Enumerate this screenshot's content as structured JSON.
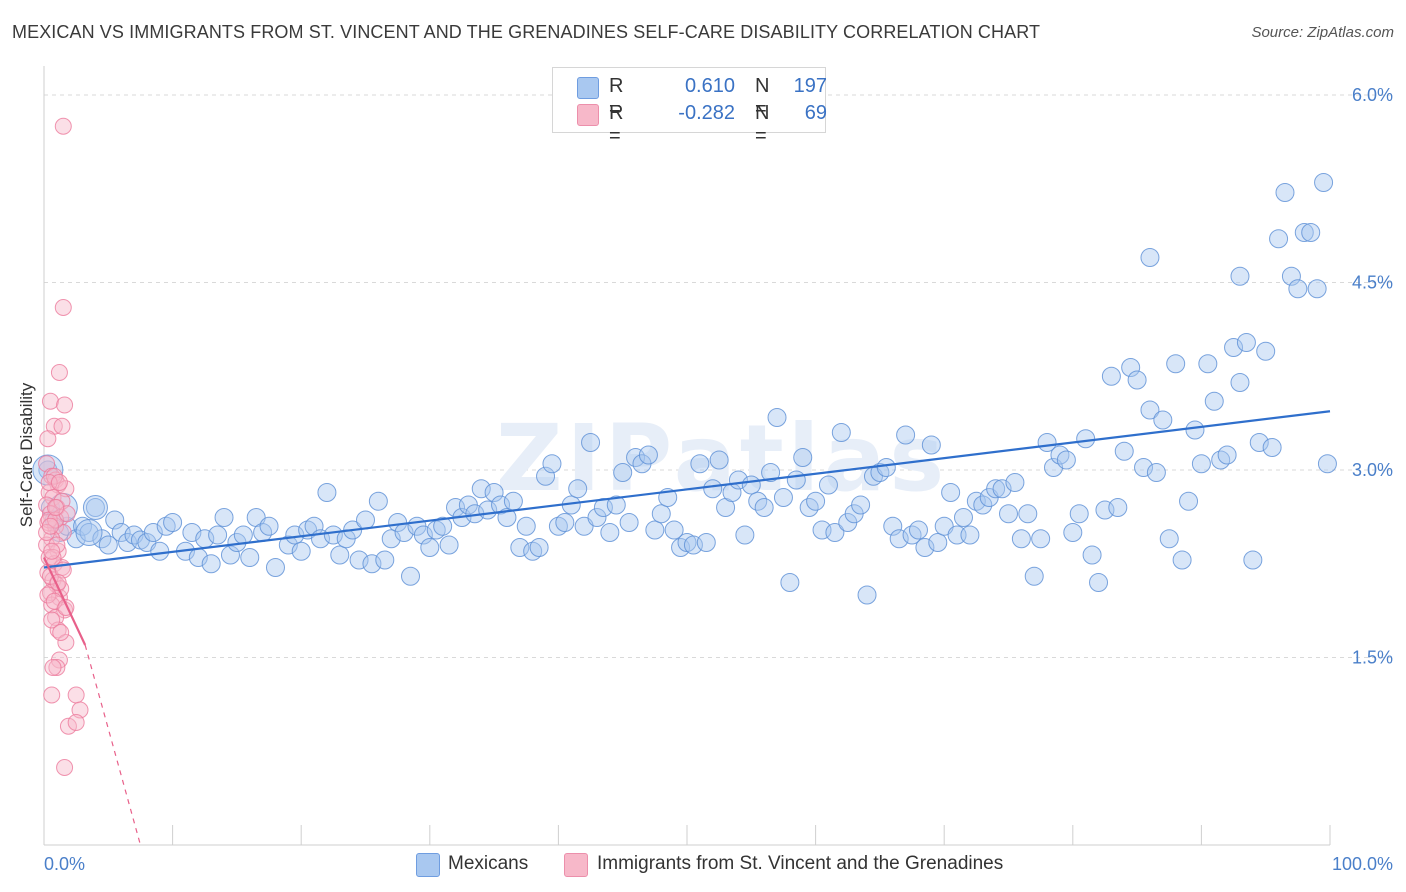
{
  "title": "MEXICAN VS IMMIGRANTS FROM ST. VINCENT AND THE GRENADINES SELF-CARE DISABILITY CORRELATION CHART",
  "source": "Source: ZipAtlas.com",
  "watermark": "ZIPatlas",
  "legend": {
    "rows": [
      {
        "r_key": "R =",
        "r_value": "0.610",
        "n_key": "N =",
        "n_value": "197",
        "color": "#a9c8f0"
      },
      {
        "r_key": "R =",
        "r_value": "-0.282",
        "n_key": "N =",
        "n_value": "69",
        "color": "#f7b8c9"
      }
    ]
  },
  "bottom_legend": {
    "series1": "Mexicans",
    "series2": "Immigrants from St. Vincent and the Grenadines"
  },
  "colors": {
    "blue_fill": "#a9c8f0",
    "blue_stroke": "#5b8fd6",
    "blue_line": "#2f6fcc",
    "pink_fill": "#f7b8c9",
    "pink_stroke": "#ec7a9c",
    "pink_line": "#e8608a",
    "tick_label": "#4a7fc9",
    "grid": "#d9d9d9"
  },
  "chart_data": {
    "type": "scatter",
    "ylabel": "Self-Care Disability",
    "xlim": [
      0,
      100
    ],
    "ylim": [
      0,
      6.2
    ],
    "x_tick_labels": [
      "0.0%",
      "100.0%"
    ],
    "y_ticks": [
      1.5,
      3.0,
      4.5,
      6.0
    ],
    "y_tick_labels": [
      "1.5%",
      "3.0%",
      "4.5%",
      "6.0%"
    ],
    "grid": "horizontal dashed",
    "series": [
      {
        "name": "Mexicans",
        "regression": {
          "x": [
            0,
            100
          ],
          "y": [
            2.22,
            3.47
          ]
        },
        "points": [
          [
            0.3,
            3.0
          ],
          [
            0.5,
            2.7
          ],
          [
            0.8,
            2.6
          ],
          [
            1.2,
            2.5
          ],
          [
            1.8,
            2.55
          ],
          [
            2.5,
            2.45
          ],
          [
            3.0,
            2.55
          ],
          [
            3.5,
            2.5
          ],
          [
            4.0,
            2.7
          ],
          [
            4.5,
            2.45
          ],
          [
            5.0,
            2.4
          ],
          [
            5.5,
            2.6
          ],
          [
            6.0,
            2.5
          ],
          [
            6.5,
            2.42
          ],
          [
            7.0,
            2.48
          ],
          [
            7.5,
            2.44
          ],
          [
            8.0,
            2.42
          ],
          [
            8.5,
            2.5
          ],
          [
            9.0,
            2.35
          ],
          [
            9.5,
            2.55
          ],
          [
            10.0,
            2.58
          ],
          [
            11.0,
            2.35
          ],
          [
            11.5,
            2.5
          ],
          [
            12.0,
            2.3
          ],
          [
            12.5,
            2.45
          ],
          [
            13.0,
            2.25
          ],
          [
            13.5,
            2.48
          ],
          [
            14.0,
            2.62
          ],
          [
            14.5,
            2.32
          ],
          [
            15.0,
            2.42
          ],
          [
            15.5,
            2.48
          ],
          [
            16.0,
            2.3
          ],
          [
            16.5,
            2.62
          ],
          [
            17.0,
            2.5
          ],
          [
            17.5,
            2.55
          ],
          [
            18.0,
            2.22
          ],
          [
            19.0,
            2.4
          ],
          [
            19.5,
            2.48
          ],
          [
            20.0,
            2.35
          ],
          [
            20.5,
            2.52
          ],
          [
            21.0,
            2.55
          ],
          [
            21.5,
            2.45
          ],
          [
            22.0,
            2.82
          ],
          [
            22.5,
            2.48
          ],
          [
            23.0,
            2.32
          ],
          [
            23.5,
            2.45
          ],
          [
            24.0,
            2.52
          ],
          [
            24.5,
            2.28
          ],
          [
            25.0,
            2.6
          ],
          [
            25.5,
            2.25
          ],
          [
            26.0,
            2.75
          ],
          [
            26.5,
            2.28
          ],
          [
            27.0,
            2.45
          ],
          [
            27.5,
            2.58
          ],
          [
            28.0,
            2.5
          ],
          [
            28.5,
            2.15
          ],
          [
            29.0,
            2.55
          ],
          [
            29.5,
            2.48
          ],
          [
            30.0,
            2.38
          ],
          [
            30.5,
            2.52
          ],
          [
            31.0,
            2.55
          ],
          [
            31.5,
            2.4
          ],
          [
            32.0,
            2.7
          ],
          [
            32.5,
            2.62
          ],
          [
            33.0,
            2.72
          ],
          [
            33.5,
            2.65
          ],
          [
            34.0,
            2.85
          ],
          [
            34.5,
            2.68
          ],
          [
            35.0,
            2.82
          ],
          [
            35.5,
            2.72
          ],
          [
            36.0,
            2.62
          ],
          [
            36.5,
            2.75
          ],
          [
            37.0,
            2.38
          ],
          [
            37.5,
            2.55
          ],
          [
            38.0,
            2.35
          ],
          [
            38.5,
            2.38
          ],
          [
            39.0,
            2.95
          ],
          [
            39.5,
            3.05
          ],
          [
            40.0,
            2.55
          ],
          [
            40.5,
            2.58
          ],
          [
            41.0,
            2.72
          ],
          [
            41.5,
            2.85
          ],
          [
            42.0,
            2.55
          ],
          [
            42.5,
            3.22
          ],
          [
            43.0,
            2.62
          ],
          [
            43.5,
            2.7
          ],
          [
            44.0,
            2.5
          ],
          [
            44.5,
            2.72
          ],
          [
            45.0,
            2.98
          ],
          [
            45.5,
            2.58
          ],
          [
            46.0,
            3.1
          ],
          [
            46.5,
            3.05
          ],
          [
            47.0,
            3.12
          ],
          [
            47.5,
            2.52
          ],
          [
            48.0,
            2.65
          ],
          [
            48.5,
            2.78
          ],
          [
            49.0,
            2.52
          ],
          [
            49.5,
            2.38
          ],
          [
            50.0,
            2.42
          ],
          [
            50.5,
            2.4
          ],
          [
            51.0,
            3.05
          ],
          [
            51.5,
            2.42
          ],
          [
            52.0,
            2.85
          ],
          [
            52.5,
            3.08
          ],
          [
            53.0,
            2.7
          ],
          [
            53.5,
            2.82
          ],
          [
            54.0,
            2.92
          ],
          [
            54.5,
            2.48
          ],
          [
            55.0,
            2.88
          ],
          [
            55.5,
            2.75
          ],
          [
            56.0,
            2.7
          ],
          [
            56.5,
            2.98
          ],
          [
            57.0,
            3.42
          ],
          [
            57.5,
            2.78
          ],
          [
            58.0,
            2.1
          ],
          [
            58.5,
            2.92
          ],
          [
            59.0,
            3.1
          ],
          [
            59.5,
            2.7
          ],
          [
            60.0,
            2.75
          ],
          [
            60.5,
            2.52
          ],
          [
            61.0,
            2.88
          ],
          [
            61.5,
            2.5
          ],
          [
            62.0,
            3.3
          ],
          [
            62.5,
            2.58
          ],
          [
            63.0,
            2.65
          ],
          [
            63.5,
            2.72
          ],
          [
            64.0,
            2.0
          ],
          [
            64.5,
            2.95
          ],
          [
            65.0,
            2.98
          ],
          [
            65.5,
            3.02
          ],
          [
            66.0,
            2.55
          ],
          [
            66.5,
            2.45
          ],
          [
            67.0,
            3.28
          ],
          [
            67.5,
            2.48
          ],
          [
            68.0,
            2.52
          ],
          [
            68.5,
            2.38
          ],
          [
            69.0,
            3.2
          ],
          [
            69.5,
            2.42
          ],
          [
            70.0,
            2.55
          ],
          [
            70.5,
            2.82
          ],
          [
            71.0,
            2.48
          ],
          [
            71.5,
            2.62
          ],
          [
            72.0,
            2.48
          ],
          [
            72.5,
            2.75
          ],
          [
            73.0,
            2.72
          ],
          [
            73.5,
            2.78
          ],
          [
            74.0,
            2.85
          ],
          [
            74.5,
            2.85
          ],
          [
            75.0,
            2.65
          ],
          [
            75.5,
            2.9
          ],
          [
            76.0,
            2.45
          ],
          [
            76.5,
            2.65
          ],
          [
            77.0,
            2.15
          ],
          [
            77.5,
            2.45
          ],
          [
            78.0,
            3.22
          ],
          [
            78.5,
            3.02
          ],
          [
            79.0,
            3.12
          ],
          [
            79.5,
            3.08
          ],
          [
            80.0,
            2.5
          ],
          [
            80.5,
            2.65
          ],
          [
            81.0,
            3.25
          ],
          [
            81.5,
            2.32
          ],
          [
            82.0,
            2.1
          ],
          [
            82.5,
            2.68
          ],
          [
            83.0,
            3.75
          ],
          [
            83.5,
            2.7
          ],
          [
            84.0,
            3.15
          ],
          [
            84.5,
            3.82
          ],
          [
            85.0,
            3.72
          ],
          [
            85.5,
            3.02
          ],
          [
            86.0,
            3.48
          ],
          [
            86.5,
            2.98
          ],
          [
            87.0,
            3.4
          ],
          [
            87.5,
            2.45
          ],
          [
            88.0,
            3.85
          ],
          [
            88.5,
            2.28
          ],
          [
            89.0,
            2.75
          ],
          [
            89.5,
            3.32
          ],
          [
            90.0,
            3.05
          ],
          [
            90.5,
            3.85
          ],
          [
            91.0,
            3.55
          ],
          [
            91.5,
            3.08
          ],
          [
            92.0,
            3.12
          ],
          [
            92.5,
            3.98
          ],
          [
            93.0,
            3.7
          ],
          [
            93.5,
            4.02
          ],
          [
            94.0,
            2.28
          ],
          [
            94.5,
            3.22
          ],
          [
            95.0,
            3.95
          ],
          [
            95.5,
            3.18
          ],
          [
            96.0,
            4.85
          ],
          [
            96.5,
            5.22
          ],
          [
            97.0,
            4.55
          ],
          [
            97.5,
            4.45
          ],
          [
            98.0,
            4.9
          ],
          [
            98.5,
            4.9
          ],
          [
            99.0,
            4.45
          ],
          [
            99.5,
            5.3
          ],
          [
            99.8,
            3.05
          ],
          [
            86.0,
            4.7
          ],
          [
            93.0,
            4.55
          ]
        ]
      },
      {
        "name": "Immigrants from St. Vincent and the Grenadines",
        "regression": {
          "x": [
            0,
            3.2
          ],
          "y": [
            2.3,
            1.6
          ],
          "dashed_extension": {
            "x": [
              3.2,
              7.5
            ],
            "y": [
              1.6,
              0.0
            ]
          }
        },
        "points": [
          [
            1.5,
            5.75
          ],
          [
            1.5,
            4.3
          ],
          [
            1.2,
            3.78
          ],
          [
            0.5,
            3.55
          ],
          [
            1.6,
            3.52
          ],
          [
            0.8,
            3.35
          ],
          [
            1.4,
            3.35
          ],
          [
            0.3,
            3.25
          ],
          [
            0.2,
            3.05
          ],
          [
            0.6,
            2.95
          ],
          [
            0.9,
            2.92
          ],
          [
            1.1,
            2.88
          ],
          [
            1.7,
            2.85
          ],
          [
            0.4,
            2.82
          ],
          [
            0.7,
            2.78
          ],
          [
            0.2,
            2.72
          ],
          [
            1.0,
            2.7
          ],
          [
            0.5,
            2.65
          ],
          [
            1.3,
            2.62
          ],
          [
            0.3,
            2.58
          ],
          [
            0.9,
            2.55
          ],
          [
            1.5,
            2.5
          ],
          [
            0.6,
            2.45
          ],
          [
            0.2,
            2.4
          ],
          [
            1.1,
            2.35
          ],
          [
            0.4,
            2.3
          ],
          [
            0.8,
            2.25
          ],
          [
            1.4,
            2.22
          ],
          [
            0.3,
            2.18
          ],
          [
            0.7,
            2.12
          ],
          [
            1.0,
            2.08
          ],
          [
            0.5,
            2.02
          ],
          [
            1.2,
            1.98
          ],
          [
            0.6,
            1.92
          ],
          [
            1.6,
            1.88
          ],
          [
            0.9,
            1.82
          ],
          [
            1.1,
            1.72
          ],
          [
            1.7,
            1.62
          ],
          [
            1.2,
            1.48
          ],
          [
            1.0,
            1.42
          ],
          [
            0.7,
            1.42
          ],
          [
            2.5,
            1.2
          ],
          [
            0.6,
            1.2
          ],
          [
            2.8,
            1.08
          ],
          [
            1.9,
            0.95
          ],
          [
            2.5,
            0.98
          ],
          [
            1.6,
            0.62
          ],
          [
            0.4,
            2.6
          ],
          [
            1.3,
            2.05
          ],
          [
            0.8,
            2.95
          ],
          [
            0.5,
            2.15
          ],
          [
            1.4,
            2.75
          ],
          [
            0.3,
            2.0
          ],
          [
            1.0,
            2.4
          ],
          [
            0.6,
            1.8
          ],
          [
            0.9,
            2.6
          ],
          [
            1.8,
            2.65
          ],
          [
            0.2,
            2.5
          ],
          [
            0.7,
            2.3
          ],
          [
            1.5,
            2.2
          ],
          [
            0.4,
            2.9
          ],
          [
            1.1,
            2.1
          ],
          [
            0.8,
            1.95
          ],
          [
            1.3,
            1.7
          ],
          [
            0.5,
            2.55
          ],
          [
            1.2,
            2.9
          ],
          [
            0.6,
            2.35
          ],
          [
            1.7,
            1.9
          ],
          [
            0.9,
            2.7
          ]
        ]
      }
    ]
  }
}
